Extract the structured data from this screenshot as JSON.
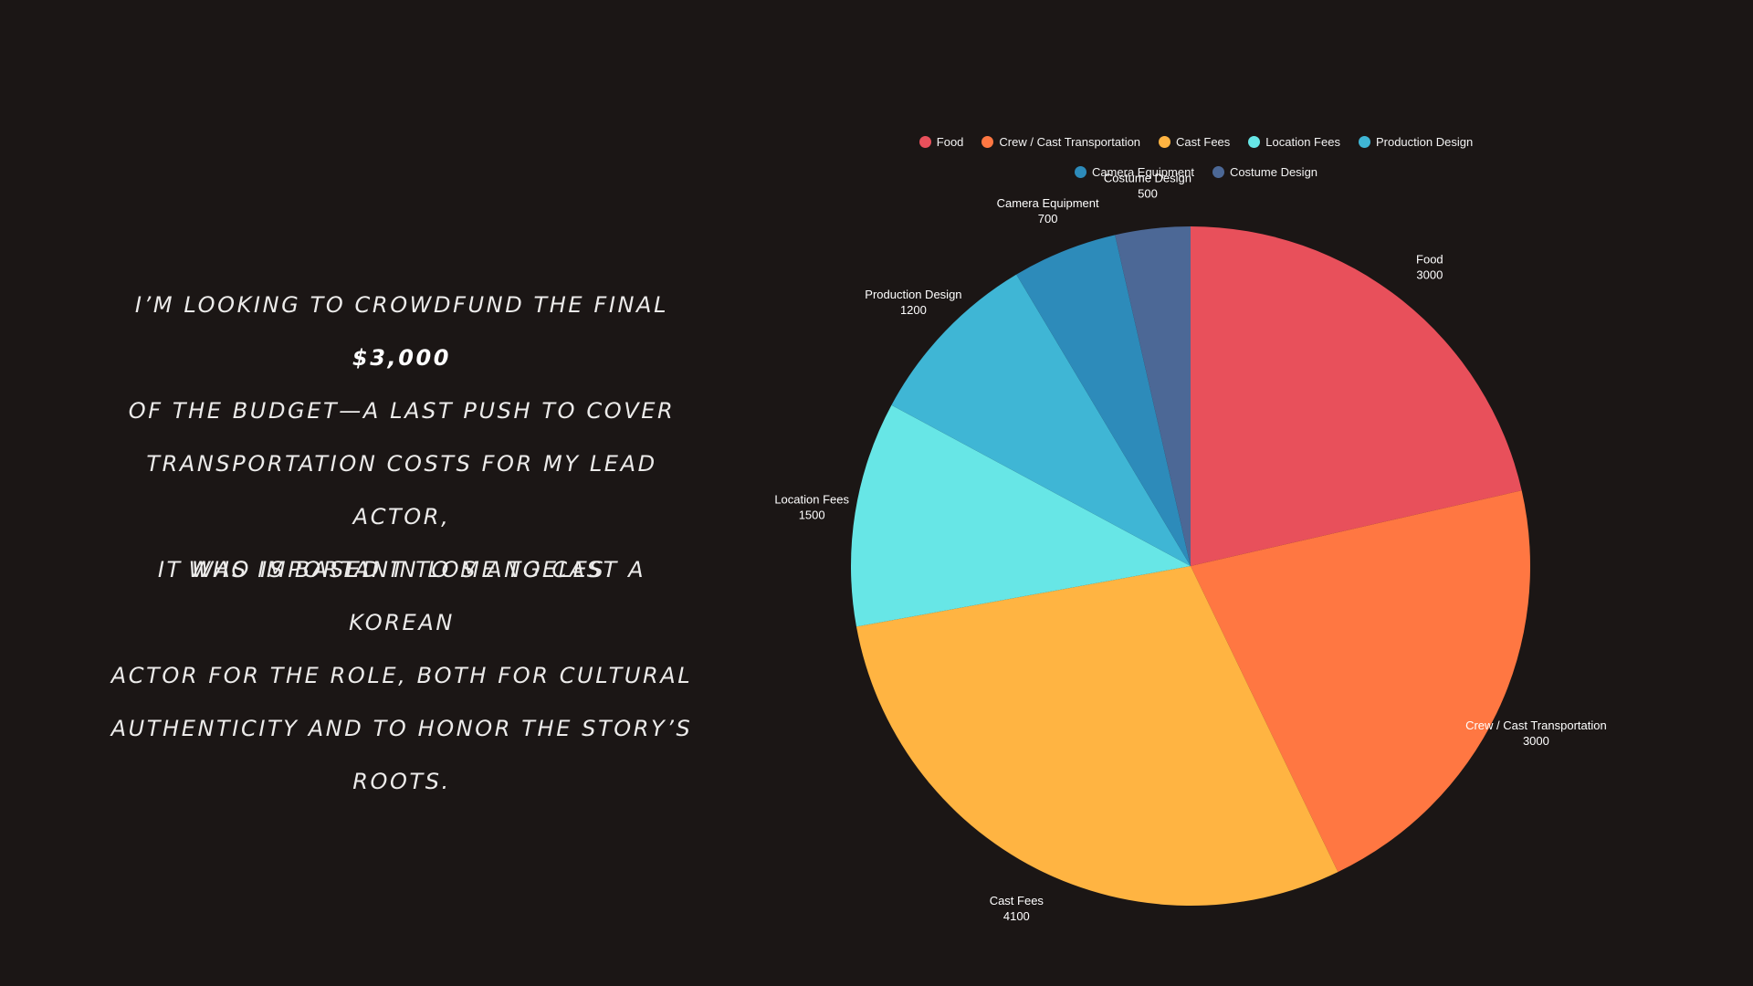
{
  "text": {
    "para1_line1_pre": "I’m looking to crowdfund the final ",
    "para1_amount": "$3,000",
    "para1_line2": "of the budget—a last push to cover",
    "para1_line3": "transportation costs for my lead actor,",
    "para1_line4": "who is based in Los Angeles.",
    "para2_line1": "It was important to me to cast a Korean",
    "para2_line2": "actor for the role, both for cultural",
    "para2_line3": "authenticity and to honor the story’s",
    "para2_line4": "roots."
  },
  "chart_data": {
    "type": "pie",
    "title": "",
    "legend_position": "top",
    "start_angle": "12 o'clock, clockwise",
    "slices": [
      {
        "label": "Food",
        "value": 3000,
        "value_label": "3000",
        "color": "#e8505b"
      },
      {
        "label": "Crew / Cast Transportation",
        "value": 3000,
        "value_label": "3000",
        "color": "#ff7742"
      },
      {
        "label": "Cast Fees",
        "value": 4100,
        "value_label": "4100",
        "color": "#ffb442"
      },
      {
        "label": "Location Fees",
        "value": 1500,
        "value_label": "1500",
        "color": "#67e6e6"
      },
      {
        "label": "Production Design",
        "value": 1200,
        "value_label": "1200",
        "color": "#3fb6d5"
      },
      {
        "label": "Camera Equipment",
        "value": 700,
        "value_label": "700",
        "color": "#2d8bba"
      },
      {
        "label": "Costume Design",
        "value": 500,
        "value_label": "500",
        "color": "#4c6896"
      }
    ]
  }
}
